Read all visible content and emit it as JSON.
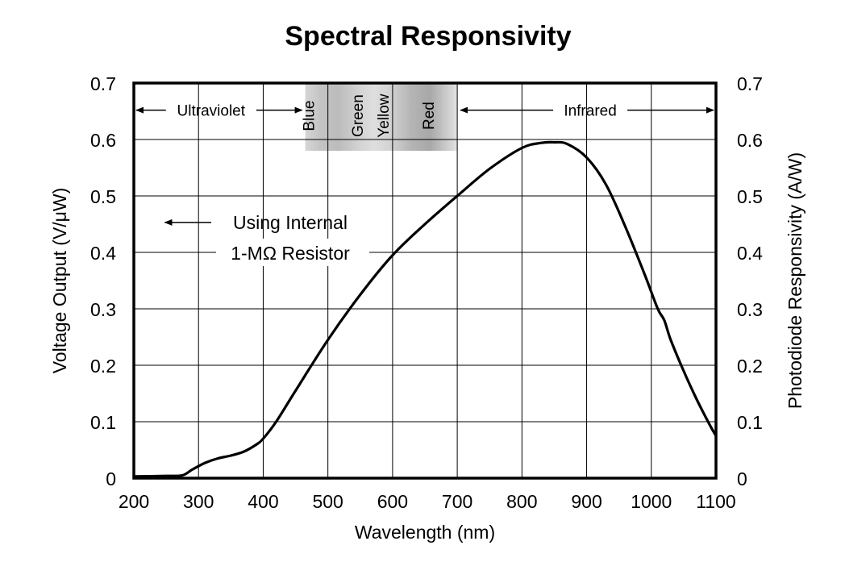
{
  "chart_data": {
    "type": "line",
    "title": "Spectral Responsivity",
    "xlabel": "Wavelength (nm)",
    "ylabel_left": "Voltage Output (V/μW)",
    "ylabel_right": "Photodiode Responsivity (A/W)",
    "xlim": [
      200,
      1100
    ],
    "ylim": [
      0,
      0.7
    ],
    "x_ticks": [
      200,
      300,
      400,
      500,
      600,
      700,
      800,
      900,
      1000,
      1100
    ],
    "x_tick_labels": [
      "200",
      "300",
      "400",
      "500",
      "600",
      "700",
      "800",
      "900",
      "1000",
      "1100"
    ],
    "y_ticks": [
      0,
      0.1,
      0.2,
      0.3,
      0.4,
      0.5,
      0.6,
      0.7
    ],
    "y_tick_labels": [
      "0",
      "0.1",
      "0.2",
      "0.3",
      "0.4",
      "0.5",
      "0.6",
      "0.7"
    ],
    "grid": true,
    "series": [
      {
        "name": "Responsivity",
        "x": [
          200,
          250,
          275,
          290,
          310,
          330,
          350,
          370,
          390,
          400,
          420,
          450,
          500,
          550,
          600,
          650,
          700,
          750,
          800,
          830,
          850,
          870,
          900,
          930,
          960,
          990,
          1010,
          1020,
          1030,
          1050,
          1070,
          1090,
          1100
        ],
        "y": [
          0.003,
          0.004,
          0.005,
          0.015,
          0.027,
          0.035,
          0.04,
          0.047,
          0.06,
          0.07,
          0.1,
          0.155,
          0.245,
          0.325,
          0.395,
          0.45,
          0.5,
          0.548,
          0.585,
          0.594,
          0.595,
          0.592,
          0.568,
          0.52,
          0.445,
          0.36,
          0.3,
          0.28,
          0.245,
          0.19,
          0.14,
          0.095,
          0.075
        ]
      }
    ],
    "regions": [
      {
        "label": "Ultraviolet",
        "x_start": 200,
        "x_end": 465
      },
      {
        "label": "Infrared",
        "x_start": 700,
        "x_end": 1100
      }
    ],
    "color_band": {
      "x_start": 465,
      "x_end": 700,
      "labels": [
        {
          "text": "Blue",
          "x": 470
        },
        {
          "text": "Green",
          "x": 545
        },
        {
          "text": "Yellow",
          "x": 585
        },
        {
          "text": "Red",
          "x": 655
        }
      ]
    },
    "annotation": {
      "lines": [
        "Using Internal",
        "1-MΩ Resistor"
      ],
      "x": 248,
      "y": 0.453
    }
  }
}
